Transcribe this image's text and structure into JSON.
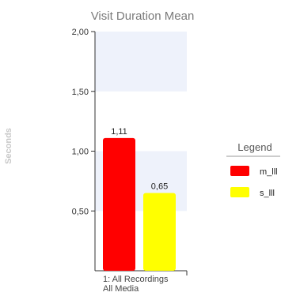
{
  "chart_data": {
    "type": "bar",
    "title": "Visit Duration Mean",
    "ylabel": "Seconds",
    "xlabel": "",
    "ylim": [
      0,
      2
    ],
    "y_ticks": [
      {
        "value": 0.5,
        "label": "0,50"
      },
      {
        "value": 1.0,
        "label": "1,00"
      },
      {
        "value": 1.5,
        "label": "1,50"
      },
      {
        "value": 2.0,
        "label": "2,00"
      }
    ],
    "categories": [
      "1: All Recordings\nAll Media"
    ],
    "category_lines": [
      [
        "1: All Recordings",
        "All Media"
      ]
    ],
    "series": [
      {
        "name": "m_lll",
        "color": "#ff0000",
        "values": [
          1.11
        ],
        "value_labels": [
          "1,11"
        ]
      },
      {
        "name": "s_lll",
        "color": "#ffff00",
        "values": [
          0.65
        ],
        "value_labels": [
          "0,65"
        ]
      }
    ],
    "grid": "alternating-bands",
    "band_color": "#eef2fb",
    "legend": {
      "title": "Legend",
      "placement": "right"
    }
  }
}
